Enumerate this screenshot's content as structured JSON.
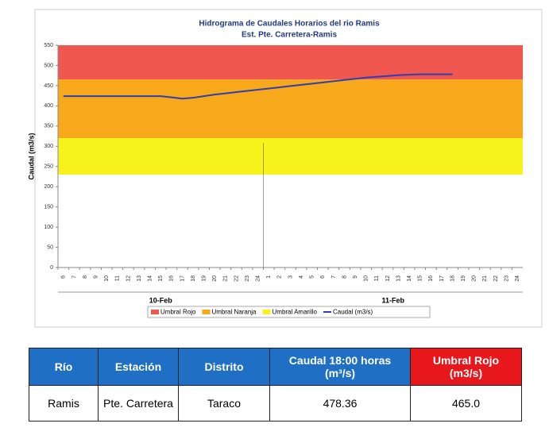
{
  "chart_data": {
    "type": "line",
    "title": "Hidrograma de Caudales Horarios del rio Ramis",
    "subtitle": "Est. Pte. Carretera-Ramis",
    "y_label": "Caudal  (m3/s)",
    "categories": [
      "6",
      "7",
      "8",
      "9",
      "10",
      "11",
      "12",
      "13",
      "14",
      "15",
      "16",
      "17",
      "18",
      "19",
      "20",
      "21",
      "22",
      "23",
      "24",
      "1",
      "2",
      "3",
      "4",
      "5",
      "6",
      "7",
      "8",
      "9",
      "10",
      "11",
      "12",
      "13",
      "14",
      "15",
      "16",
      "17",
      "18",
      "19",
      "20",
      "21",
      "22",
      "23",
      "24"
    ],
    "groups": [
      {
        "label": "10-Feb",
        "start": 0,
        "end": 18
      },
      {
        "label": "11-Feb",
        "start": 19,
        "end": 42
      }
    ],
    "series": [
      {
        "name": "Caudal (m3/s)",
        "color": "#2e3fae",
        "values": [
          424,
          424,
          424,
          424,
          424,
          424,
          424,
          424,
          424,
          424,
          421,
          418,
          420,
          424,
          428,
          431,
          434,
          437,
          440,
          443,
          446,
          449,
          452,
          455,
          458,
          461,
          464,
          467,
          470,
          472,
          474,
          476,
          477,
          478,
          478,
          478,
          478,
          null,
          null,
          null,
          null,
          null,
          null
        ]
      }
    ],
    "thresholds": [
      {
        "name": "Umbral Rojo",
        "color": "#f0574e",
        "value": 465
      },
      {
        "name": "Umbral Naranja",
        "color": "#f7a81b",
        "value": 320
      },
      {
        "name": "Umbral Amarillo",
        "color": "#f7f21a",
        "value": 230
      }
    ],
    "ylim": [
      0,
      550
    ],
    "yticks": [
      0,
      50,
      100,
      150,
      200,
      250,
      300,
      350,
      400,
      450,
      500,
      550
    ]
  },
  "table": {
    "headers": [
      "Río",
      "Estación",
      "Distrito",
      "Caudal 18:00 horas (m³/s)",
      "Umbral Rojo (m3/s)"
    ],
    "rows": [
      [
        "Ramis",
        "Pte. Carretera",
        "Taraco",
        "478.36",
        "465.0"
      ]
    ]
  }
}
